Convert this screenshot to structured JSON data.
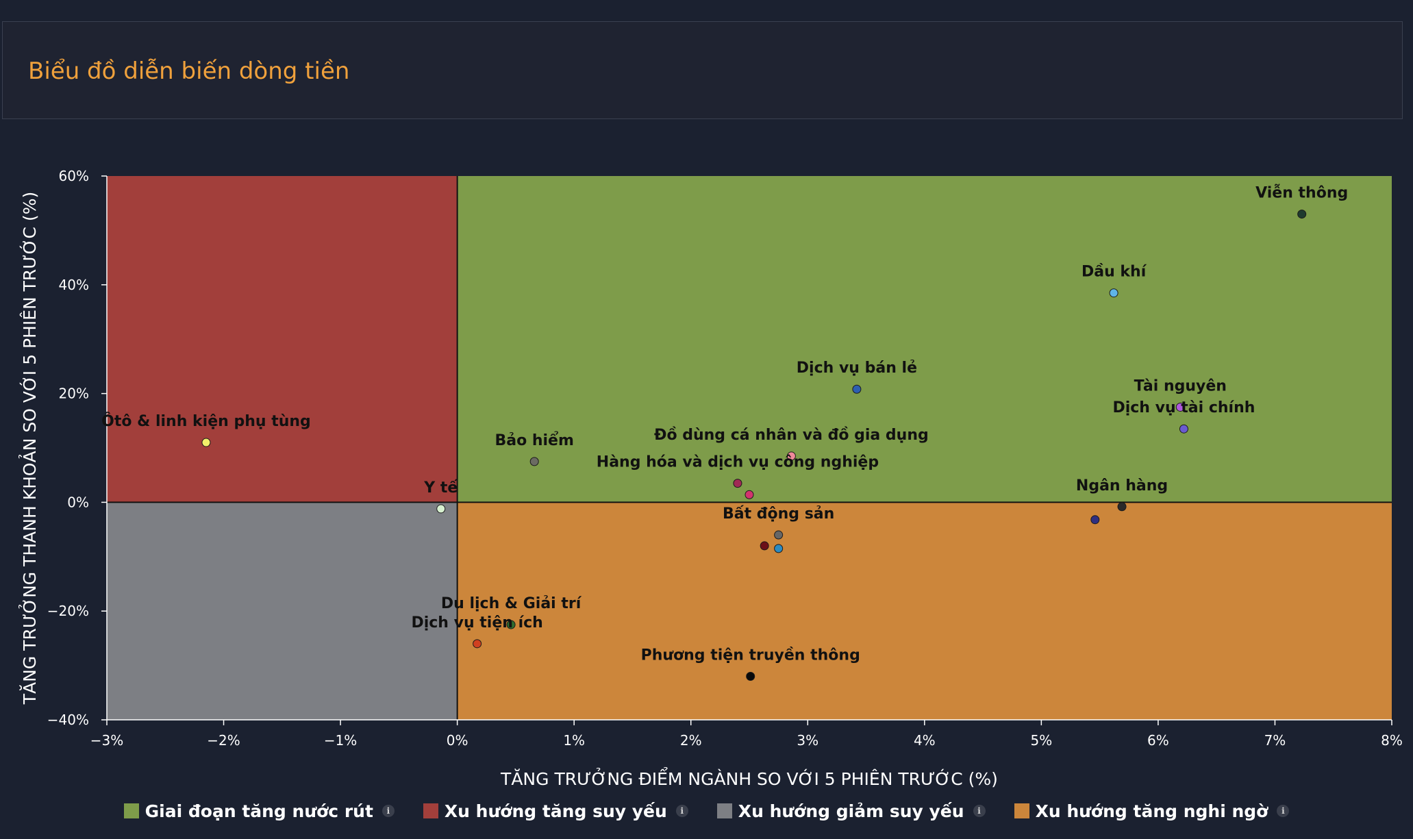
{
  "header": {
    "title": "Biểu đồ diễn biến dòng tiền"
  },
  "chart_data": {
    "type": "scatter",
    "title": "",
    "xlabel": "TĂNG TRƯỞNG ĐIỂM NGÀNH SO VỚI 5 PHIÊN TRƯỚC (%)",
    "ylabel": "TĂNG TRƯỞNG THANH KHOẢN SO VỚI 5 PHIÊN TRƯỚC (%)",
    "xlim": [
      -3,
      8
    ],
    "ylim": [
      -40,
      60
    ],
    "xticks": [
      -3,
      -2,
      -1,
      0,
      1,
      2,
      3,
      4,
      5,
      6,
      7,
      8
    ],
    "yticks": [
      -40,
      -20,
      0,
      20,
      40,
      60
    ],
    "x_tick_labels": [
      "−3%",
      "−2%",
      "−1%",
      "0%",
      "1%",
      "2%",
      "3%",
      "4%",
      "5%",
      "6%",
      "7%",
      "8%"
    ],
    "y_tick_labels": [
      "−40%",
      "−20%",
      "0%",
      "20%",
      "40%",
      "60%"
    ],
    "quadrants": [
      {
        "name": "Giai đoạn tăng nước rút",
        "color": "#7e9c4a",
        "x": [
          0,
          8
        ],
        "y": [
          0,
          60
        ]
      },
      {
        "name": "Xu hướng tăng suy yếu",
        "color": "#a23f3b",
        "x": [
          -3,
          0
        ],
        "y": [
          0,
          60
        ]
      },
      {
        "name": "Xu hướng giảm suy yếu",
        "color": "#7d7f84",
        "x": [
          -3,
          0
        ],
        "y": [
          -40,
          0
        ]
      },
      {
        "name": "Xu hướng tăng nghi ngờ",
        "color": "#cc863b",
        "x": [
          0,
          8
        ],
        "y": [
          -40,
          0
        ]
      }
    ],
    "points": [
      {
        "label": "Viễn thông",
        "x": 7.23,
        "y": 53,
        "color": "#1f3a2e"
      },
      {
        "label": "Dầu khí",
        "x": 5.62,
        "y": 38.5,
        "color": "#5fb5e8"
      },
      {
        "label": "Dịch vụ bán lẻ",
        "x": 3.42,
        "y": 20.8,
        "color": "#2d5fb0"
      },
      {
        "label": "Tài nguyên",
        "x": 6.19,
        "y": 17.5,
        "color": "#b05adc"
      },
      {
        "label": "Dịch vụ tài chính",
        "x": 6.22,
        "y": 13.5,
        "color": "#6a5bd0"
      },
      {
        "label": "Ôtô & linh kiện phụ tùng",
        "x": -2.15,
        "y": 11,
        "color": "#f2f06a"
      },
      {
        "label": "Bảo hiểm",
        "x": 0.66,
        "y": 7.5,
        "color": "#6b6b62"
      },
      {
        "label": "Đồ dùng cá nhân và đồ gia dụng",
        "x": 2.86,
        "y": 8.5,
        "color": "#f08a9a"
      },
      {
        "label": "Hàng hóa và dịch vụ công nghiệp",
        "x": 2.4,
        "y": 3.5,
        "color": "#a02a55"
      },
      {
        "label": "",
        "x": 2.5,
        "y": 1.4,
        "color": "#d2336e"
      },
      {
        "label": "Y tế",
        "x": -0.14,
        "y": -1.2,
        "color": "#d8f0d0"
      },
      {
        "label": "Ngân hàng",
        "x": 5.69,
        "y": -0.8,
        "color": "#2a2a2a"
      },
      {
        "label": "",
        "x": 5.46,
        "y": -3.2,
        "color": "#2f2f80"
      },
      {
        "label": "Bất động sản",
        "x": 2.75,
        "y": -6,
        "color": "#666666"
      },
      {
        "label": "",
        "x": 2.63,
        "y": -8,
        "color": "#6b1018"
      },
      {
        "label": "",
        "x": 2.75,
        "y": -8.5,
        "color": "#2e8bc0"
      },
      {
        "label": "Du lịch & Giải trí",
        "x": 0.46,
        "y": -22.5,
        "color": "#2e6b2e"
      },
      {
        "label": "Dịch vụ tiện ích",
        "x": 0.17,
        "y": -26,
        "color": "#d04020"
      },
      {
        "label": "Phương tiện truyền thông",
        "x": 2.51,
        "y": -32,
        "color": "#0a0a0a"
      }
    ]
  },
  "legend": [
    {
      "label": "Giai đoạn tăng nước rút",
      "color": "#7e9c4a",
      "info": "i"
    },
    {
      "label": "Xu hướng tăng suy yếu",
      "color": "#a23f3b",
      "info": "i"
    },
    {
      "label": "Xu hướng giảm suy yếu",
      "color": "#7d7f84",
      "info": "i"
    },
    {
      "label": "Xu hướng tăng nghi ngờ",
      "color": "#cc863b",
      "info": "i"
    }
  ]
}
